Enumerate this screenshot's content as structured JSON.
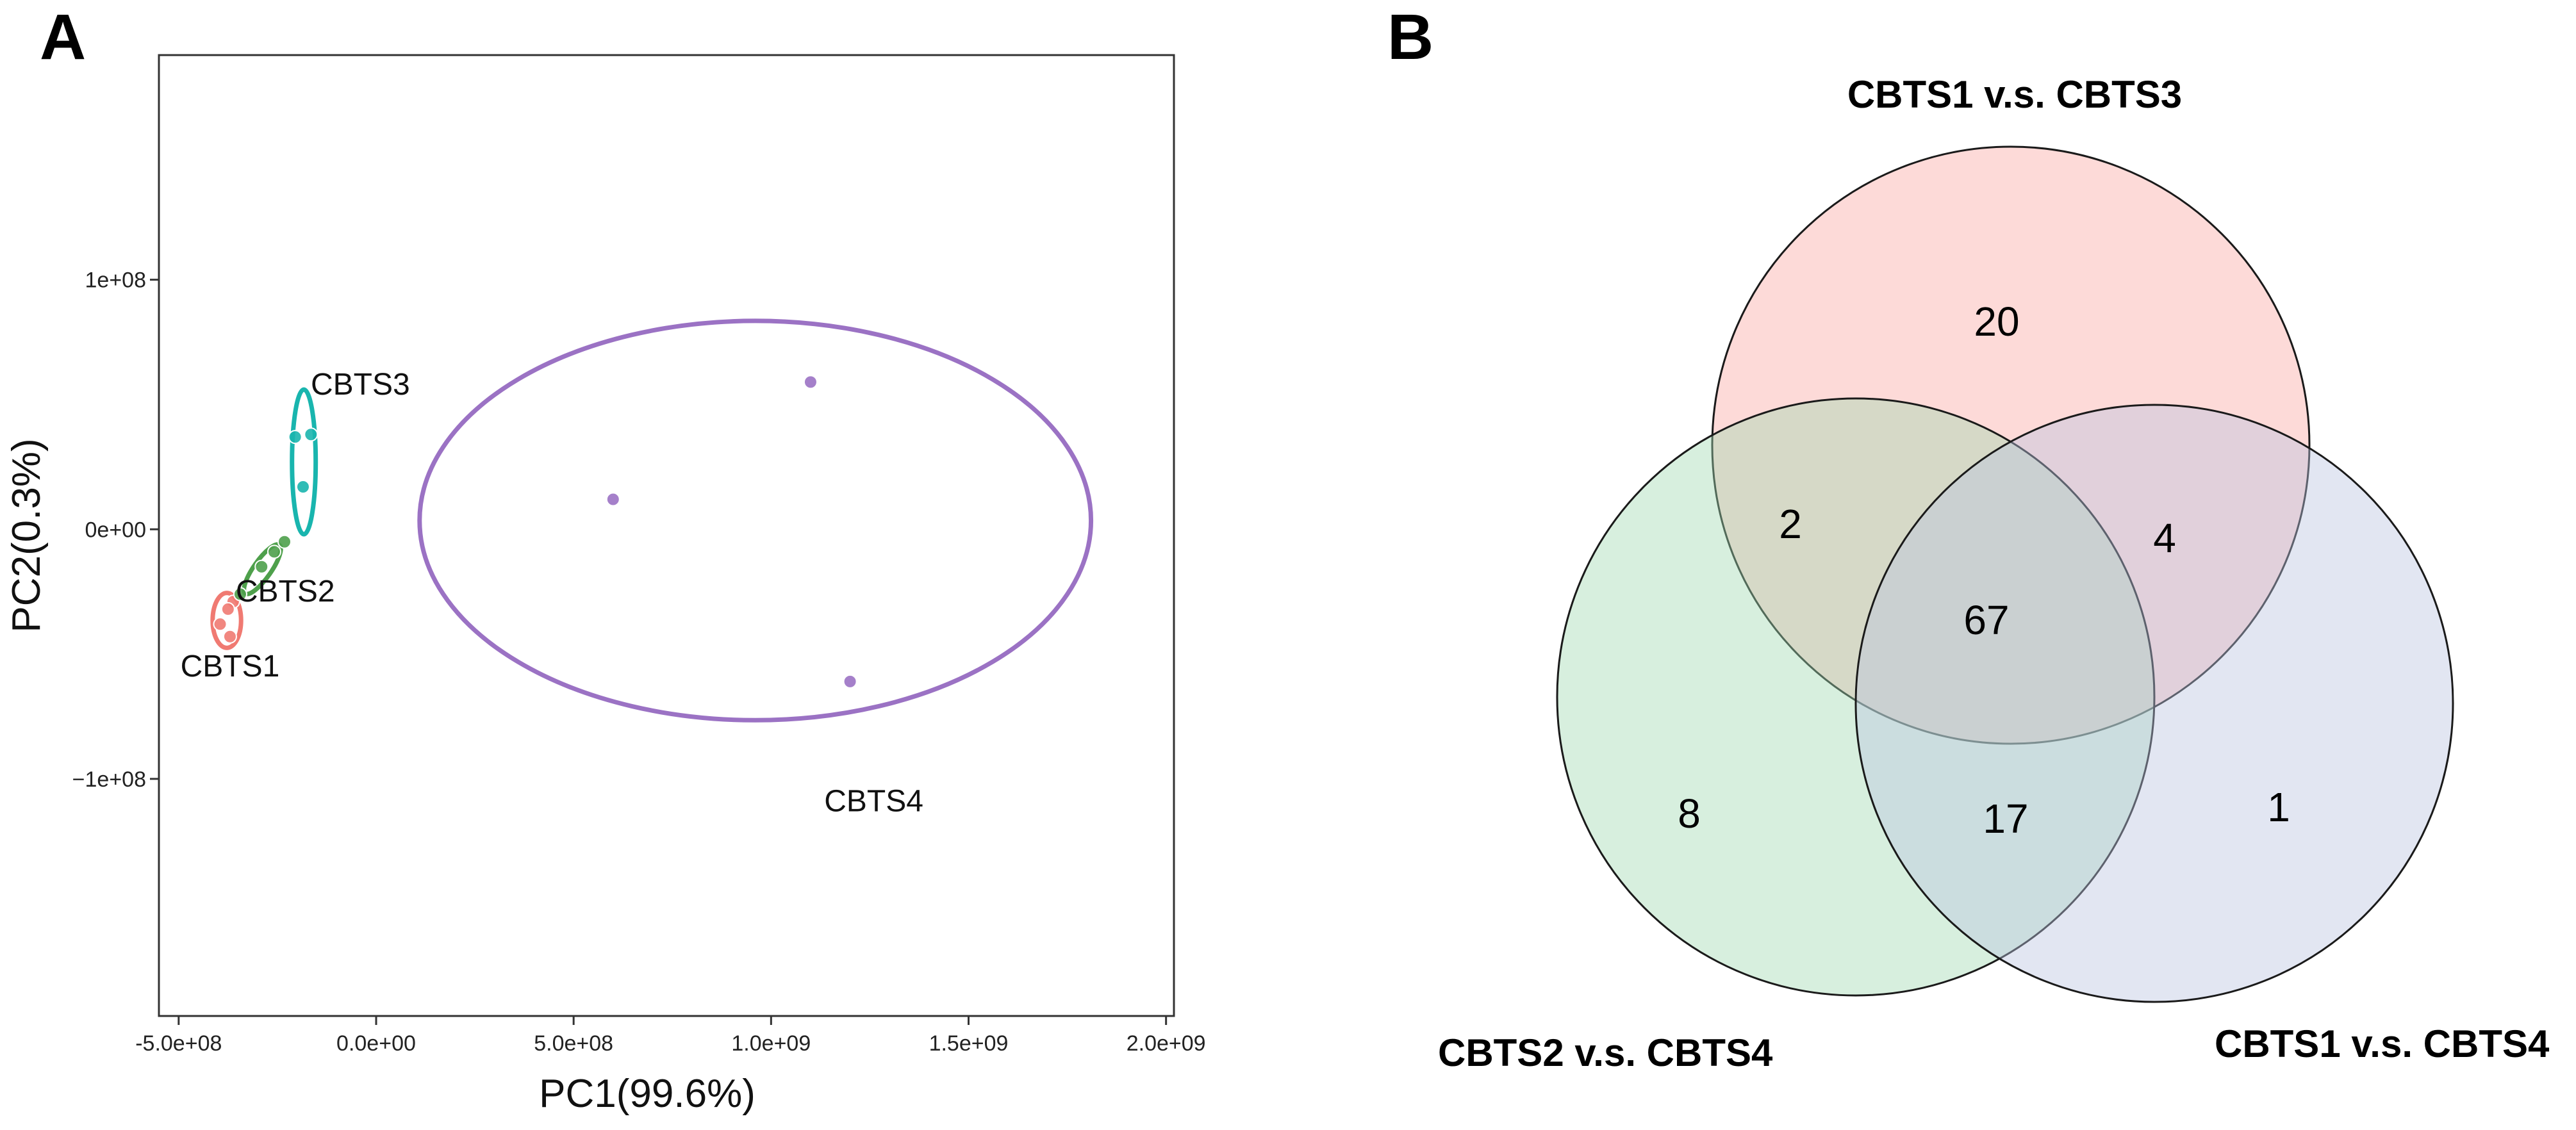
{
  "panels": {
    "a_letter": "A",
    "b_letter": "B"
  },
  "chart_data": [
    {
      "type": "scatter",
      "panel": "A",
      "title": "",
      "xlabel": "PC1(99.6%)",
      "ylabel": "PC2(0.3%)",
      "xlim": [
        -550000000,
        2020000000
      ],
      "ylim": [
        -195000000,
        190000000
      ],
      "x_ticks": [
        {
          "value": -500000000,
          "label": "-5.0e+08"
        },
        {
          "value": 0,
          "label": "0.0e+00"
        },
        {
          "value": 500000000,
          "label": "5.0e+08"
        },
        {
          "value": 1000000000,
          "label": "1.0e+09"
        },
        {
          "value": 1500000000,
          "label": "1.5e+09"
        },
        {
          "value": 2000000000,
          "label": "2.0e+09"
        }
      ],
      "y_ticks": [
        {
          "value": 100000000,
          "label": "1e+08"
        },
        {
          "value": 0,
          "label": "0e+00"
        },
        {
          "value": -100000000,
          "label": "−1e+08"
        }
      ],
      "grid": false,
      "series": [
        {
          "name": "CBTS1",
          "color": "#f07a72",
          "points": [
            {
              "x": -395000000,
              "y": -38000000
            },
            {
              "x": -370000000,
              "y": -43000000
            },
            {
              "x": -362000000,
              "y": -29000000
            },
            {
              "x": -375000000,
              "y": -32000000
            }
          ],
          "ellipse": {
            "cx": -378000000,
            "cy": -36500000,
            "rx": 36000000,
            "ry": 11000000,
            "angle_deg": 0
          },
          "label": {
            "text": "CBTS1",
            "x": -370000000,
            "y": -59000000
          }
        },
        {
          "name": "CBTS2",
          "color": "#4ea04b",
          "points": [
            {
              "x": -344000000,
              "y": -26000000
            },
            {
              "x": -290000000,
              "y": -15000000
            },
            {
              "x": -258000000,
              "y": -9000000
            },
            {
              "x": -232000000,
              "y": -5000000
            }
          ],
          "ellipse": {
            "cx": -288000000,
            "cy": -16000000,
            "rx": 75000000,
            "ry": 3500000,
            "angle_deg": 55
          },
          "label": {
            "text": "CBTS2",
            "x": -230000000,
            "y": -29000000
          }
        },
        {
          "name": "CBTS3",
          "color": "#19b5ae",
          "points": [
            {
              "x": -205000000,
              "y": 37000000
            },
            {
              "x": -165000000,
              "y": 38000000
            },
            {
              "x": -185000000,
              "y": 17000000
            }
          ],
          "ellipse": {
            "cx": -183000000,
            "cy": 27000000,
            "rx": 30000000,
            "ry": 29000000,
            "angle_deg": 0
          },
          "label": {
            "text": "CBTS3",
            "x": -40000000,
            "y": 54000000
          }
        },
        {
          "name": "CBTS4",
          "color": "#9b72c4",
          "points": [
            {
              "x": 600000000,
              "y": 12000000
            },
            {
              "x": 1100000000,
              "y": 59000000
            },
            {
              "x": 1200000000,
              "y": -61000000
            }
          ],
          "ellipse": {
            "cx": 960000000,
            "cy": 3500000,
            "rx": 850000000,
            "ry": 80000000,
            "angle_deg": 0
          },
          "label": {
            "text": "CBTS4",
            "x": 1260000000,
            "y": -113000000
          }
        }
      ]
    },
    {
      "type": "venn",
      "panel": "B",
      "sets": [
        {
          "name": "CBTS1 v.s. CBTS3",
          "color": "#fba8a3"
        },
        {
          "name": "CBTS2 v.s. CBTS4",
          "color": "#9fd8b1"
        },
        {
          "name": "CBTS1 v.s. CBTS4",
          "color": "#b9c4e0"
        }
      ],
      "regions": [
        {
          "sets": [
            "CBTS1 v.s. CBTS3"
          ],
          "value": "20"
        },
        {
          "sets": [
            "CBTS2 v.s. CBTS4"
          ],
          "value": "8"
        },
        {
          "sets": [
            "CBTS1 v.s. CBTS4"
          ],
          "value": "1"
        },
        {
          "sets": [
            "CBTS1 v.s. CBTS3",
            "CBTS2 v.s. CBTS4"
          ],
          "value": "2"
        },
        {
          "sets": [
            "CBTS1 v.s. CBTS3",
            "CBTS1 v.s. CBTS4"
          ],
          "value": "4"
        },
        {
          "sets": [
            "CBTS2 v.s. CBTS4",
            "CBTS1 v.s. CBTS4"
          ],
          "value": "17"
        },
        {
          "sets": [
            "CBTS1 v.s. CBTS3",
            "CBTS2 v.s. CBTS4",
            "CBTS1 v.s. CBTS4"
          ],
          "value": "67"
        }
      ]
    }
  ]
}
